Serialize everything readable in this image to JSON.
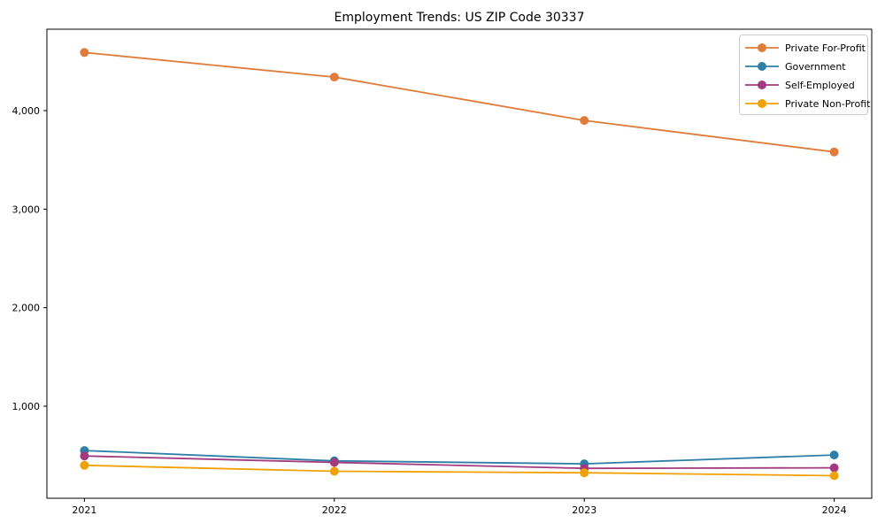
{
  "figure": {
    "title": "Employment Trends: US ZIP Code 30337"
  },
  "chart_data": {
    "type": "line",
    "title": "Employment Trends: US ZIP Code 30337",
    "xlabel": "",
    "ylabel": "",
    "grid": false,
    "legend_position": "upper right",
    "x": [
      2021,
      2022,
      2023,
      2024
    ],
    "x_tick_labels": [
      "2021",
      "2022",
      "2023",
      "2024"
    ],
    "y_ticks": [
      {
        "value": 1000,
        "label": "1,000"
      },
      {
        "value": 2000,
        "label": "2,000"
      },
      {
        "value": 3000,
        "label": "3,000"
      },
      {
        "value": 4000,
        "label": "4,000"
      }
    ],
    "xlim": [
      2020.85,
      2024.15
    ],
    "ylim": [
      66,
      4826
    ],
    "series": [
      {
        "name": "Private For-Profit",
        "color": "#e07b3a",
        "values": [
          4590,
          4340,
          3900,
          3580
        ]
      },
      {
        "name": "Government",
        "color": "#2e7fa6",
        "values": [
          550,
          445,
          415,
          505
        ]
      },
      {
        "name": "Self-Employed",
        "color": "#a23a7d",
        "values": [
          495,
          430,
          370,
          375
        ]
      },
      {
        "name": "Private Non-Profit",
        "color": "#f2a104",
        "values": [
          400,
          340,
          325,
          295
        ]
      }
    ],
    "frame_color": "#000000",
    "legend_border_color": "#cccccc"
  }
}
